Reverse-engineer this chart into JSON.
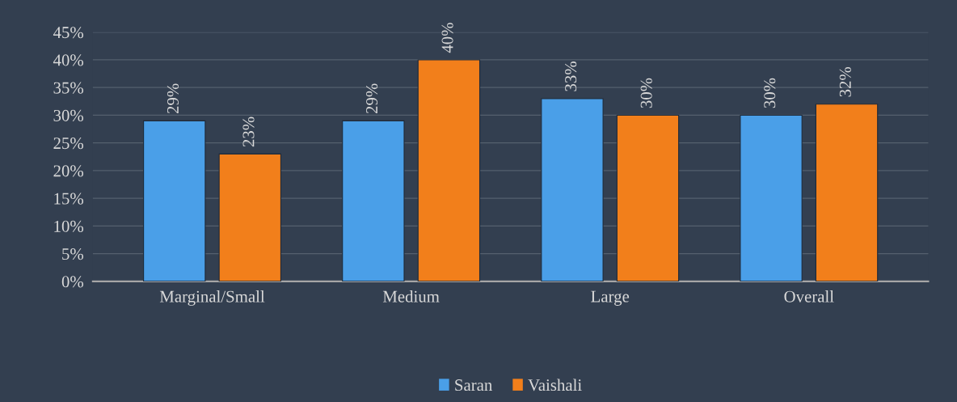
{
  "chart_data": {
    "type": "bar",
    "categories": [
      "Marginal/Small",
      "Medium",
      "Large",
      "Overall"
    ],
    "series": [
      {
        "name": "Saran",
        "color": "#4a9fe8",
        "values": [
          29,
          29,
          33,
          30
        ]
      },
      {
        "name": "Vaishali",
        "color": "#f27f1b",
        "values": [
          23,
          40,
          30,
          32
        ]
      }
    ],
    "ylim": [
      0,
      45
    ],
    "yticks": [
      {
        "value": 0,
        "label": "0%"
      },
      {
        "value": 5,
        "label": "5%"
      },
      {
        "value": 10,
        "label": "10%"
      },
      {
        "value": 15,
        "label": "15%"
      },
      {
        "value": 20,
        "label": "20%"
      },
      {
        "value": 25,
        "label": "25%"
      },
      {
        "value": 30,
        "label": "30%"
      },
      {
        "value": 35,
        "label": "35%"
      },
      {
        "value": 40,
        "label": "40%"
      },
      {
        "value": 45,
        "label": "45%"
      }
    ],
    "value_labels": [
      [
        "29%",
        "29%",
        "33%",
        "30%"
      ],
      [
        "23%",
        "40%",
        "30%",
        "32%"
      ]
    ],
    "grid": "y",
    "legend": "bottom"
  }
}
